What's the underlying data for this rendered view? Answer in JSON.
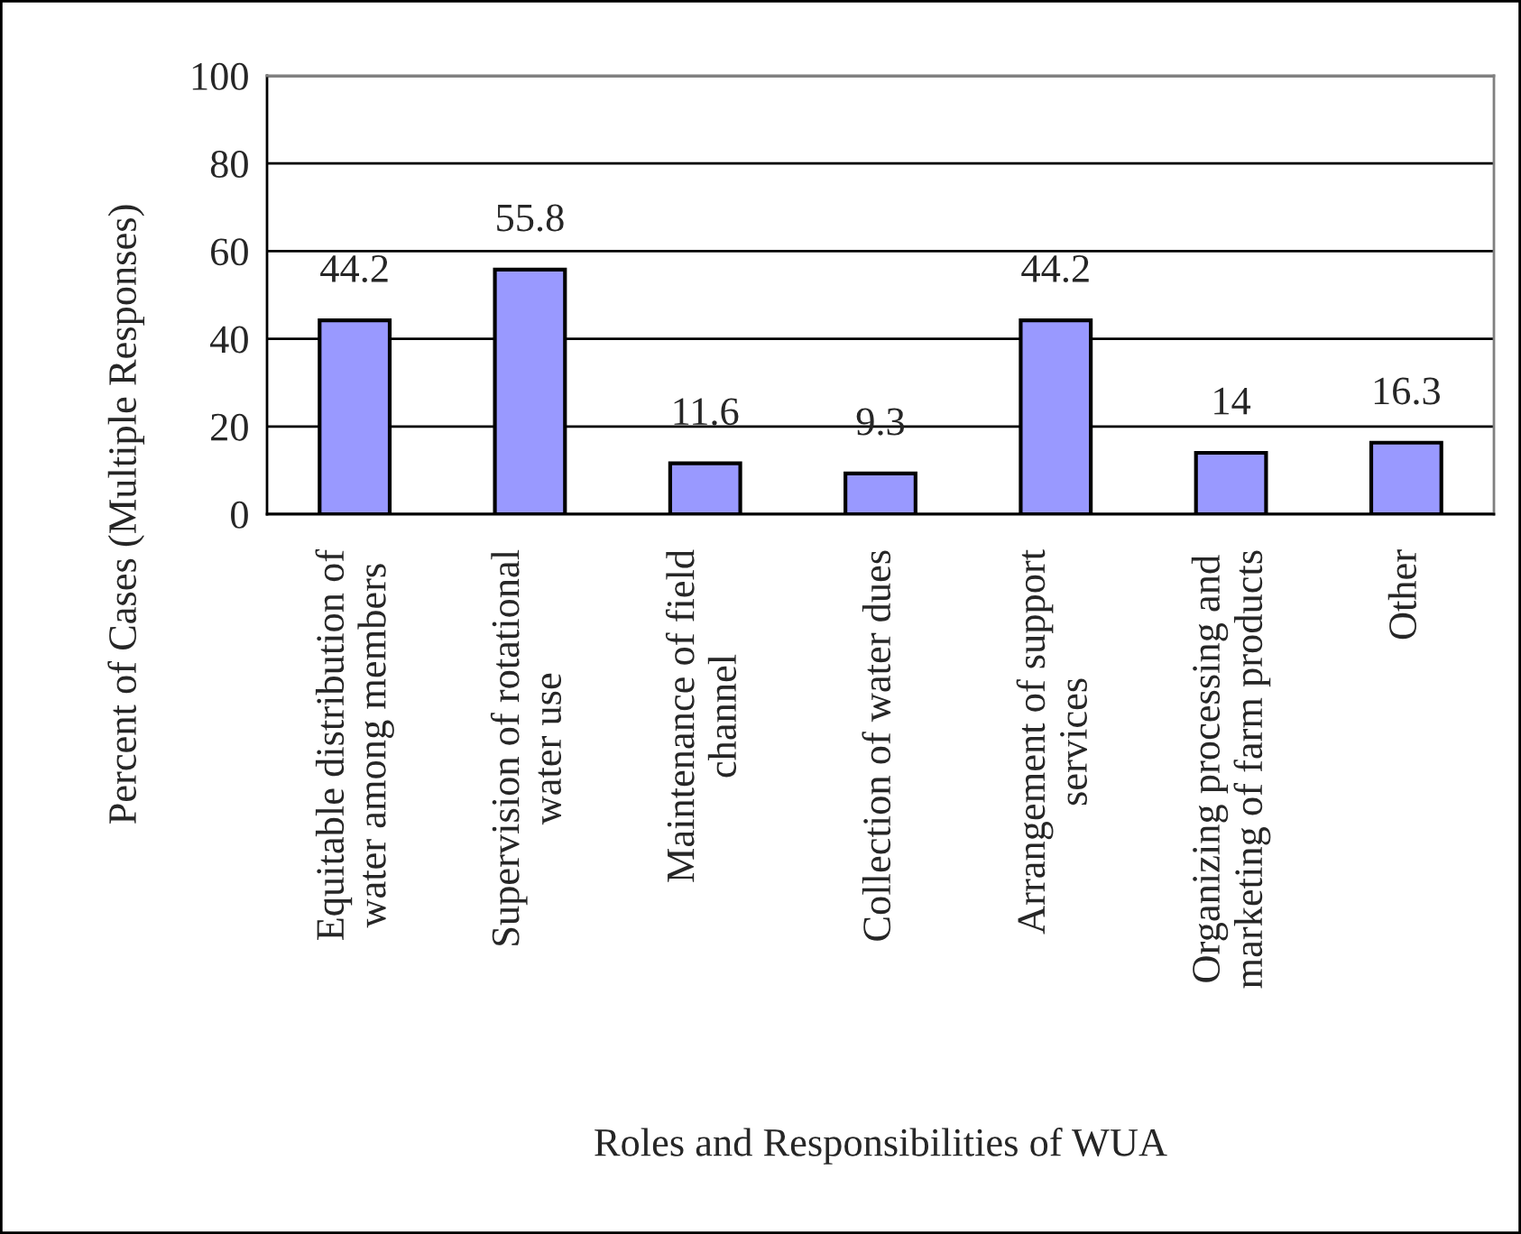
{
  "chart_data": {
    "type": "bar",
    "xlabel": "Roles and Responsibilities of WUA",
    "ylabel": "Percent of Cases (Multiple Responses)",
    "categories": [
      "Equitable distribution of\nwater among members",
      "Supervision of rotational\nwater use",
      "Maintenance of field\nchannel",
      "Collection of water dues",
      "Arrangement of support\nservices",
      "Organizing processing and\nmarketing of farm products",
      "Other"
    ],
    "values": [
      44.2,
      55.8,
      11.6,
      9.3,
      44.2,
      14,
      16.3
    ],
    "color": "#9999ff",
    "ylim": [
      0,
      100
    ],
    "yticks": [
      0,
      20,
      40,
      60,
      80,
      100
    ],
    "grid": "y",
    "data_labels": true
  }
}
